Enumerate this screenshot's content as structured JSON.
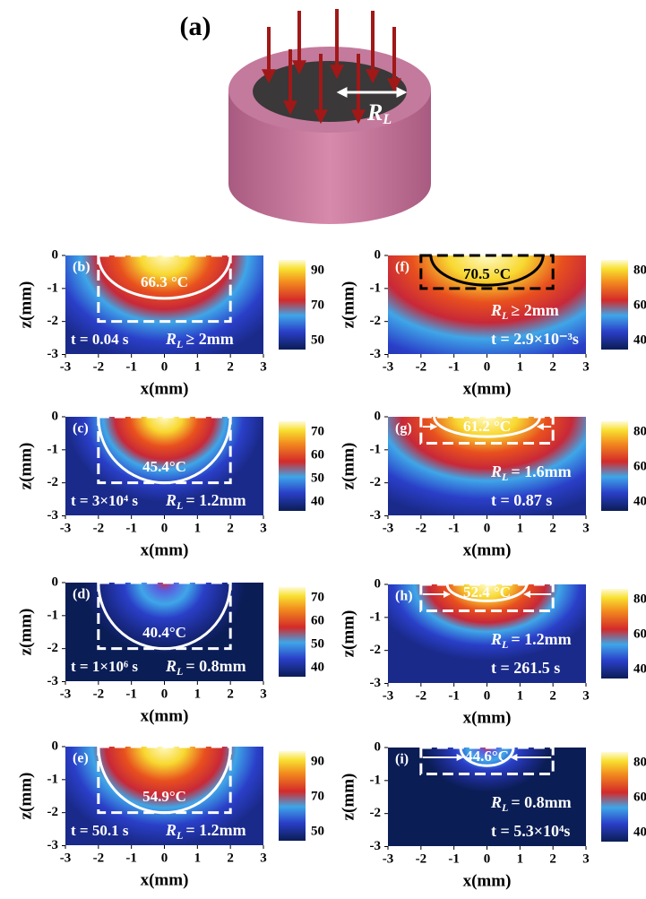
{
  "panel_a": {
    "label": "(a)",
    "radius_symbol": "R",
    "radius_sub": "L"
  },
  "axes": {
    "x_label": "x(mm)",
    "z_label": "z(mm)",
    "x_ticks": [
      "-3",
      "-2",
      "-1",
      "0",
      "1",
      "2",
      "3"
    ],
    "z_ticks": [
      "0",
      "-1",
      "-2",
      "-3"
    ]
  },
  "panels": [
    {
      "label": "(b)",
      "temperature": "66.3 °C",
      "time": "t = 0.04 s",
      "radius": "≥ 2mm",
      "colorbar_ticks": [
        "90",
        "70",
        "50"
      ]
    },
    {
      "label": "(c)",
      "temperature": "45.4°C",
      "time": "t = 3×10⁴ s",
      "radius": "= 1.2mm",
      "colorbar_ticks": [
        "70",
        "60",
        "50",
        "40"
      ]
    },
    {
      "label": "(d)",
      "temperature": "40.4°C",
      "time": "t = 1×10⁶ s",
      "radius": "= 0.8mm",
      "colorbar_ticks": [
        "70",
        "60",
        "50",
        "40"
      ]
    },
    {
      "label": "(e)",
      "temperature": "54.9°C",
      "time": "t = 50.1 s",
      "radius": "= 1.2mm",
      "colorbar_ticks": [
        "90",
        "70",
        "50"
      ]
    },
    {
      "label": "(f)",
      "temperature": "70.5 °C",
      "time": "t = 2.9×10⁻³s",
      "radius": "≥ 2mm",
      "colorbar_ticks": [
        "80",
        "60",
        "40"
      ]
    },
    {
      "label": "(g)",
      "temperature": "61.2 °C",
      "time": "t = 0.87 s",
      "radius": "= 1.6mm",
      "colorbar_ticks": [
        "80",
        "60",
        "40"
      ]
    },
    {
      "label": "(h)",
      "temperature": "52.4 °C",
      "time": "t = 261.5 s",
      "radius": "= 1.2mm",
      "colorbar_ticks": [
        "80",
        "60",
        "40"
      ]
    },
    {
      "label": "(i)",
      "temperature": "44.6°C",
      "time": "t = 5.3×10⁴s",
      "radius": "= 0.8mm",
      "colorbar_ticks": [
        "80",
        "60",
        "40"
      ]
    }
  ]
}
